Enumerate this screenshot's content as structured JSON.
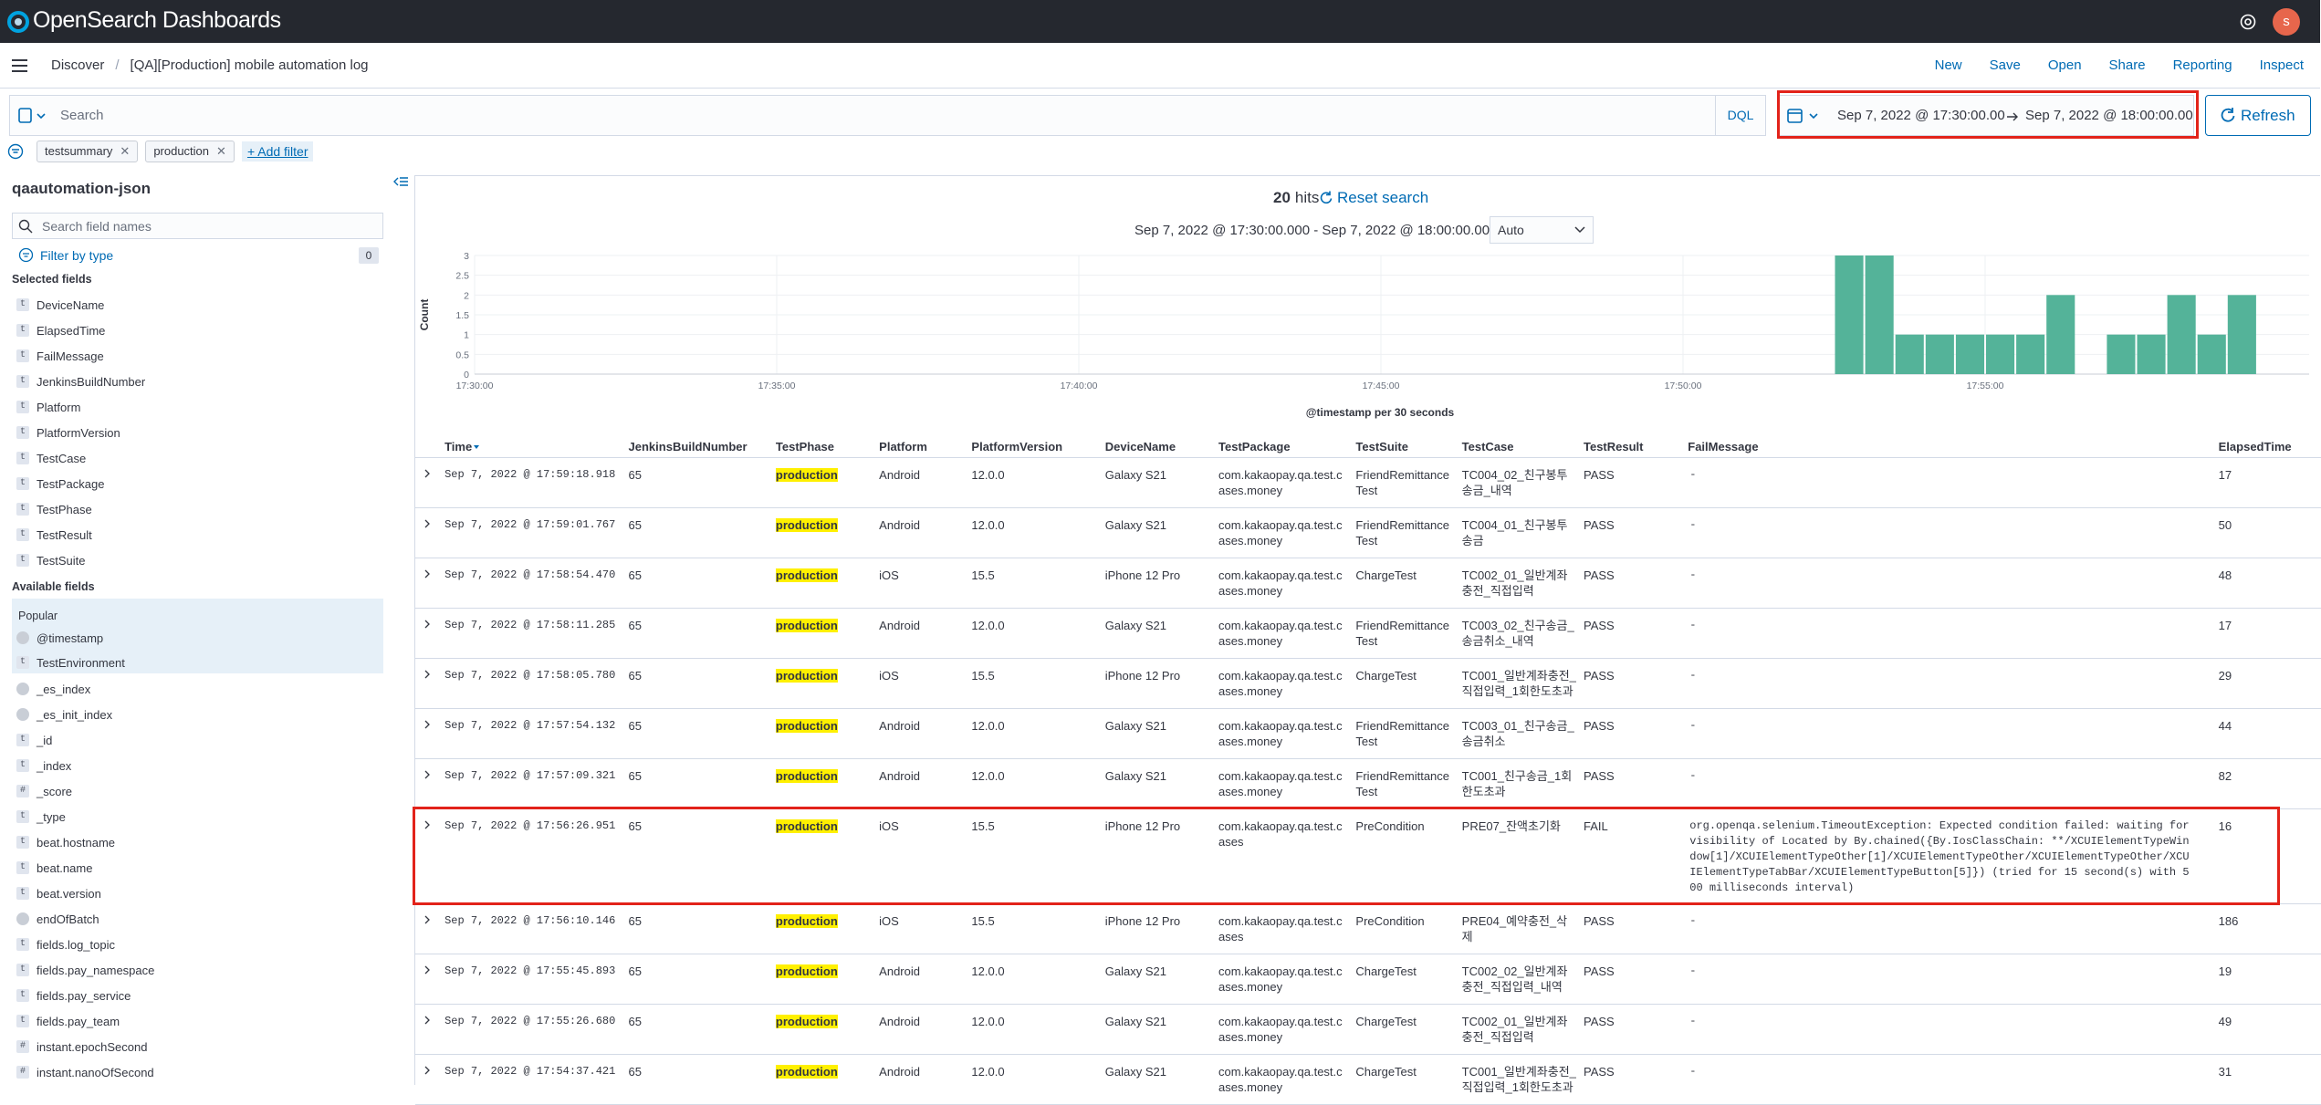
{
  "header": {
    "logo": "OpenSearch Dashboards",
    "avatar": "s"
  },
  "nav": {
    "breadcrumbs": [
      "Discover",
      "[QA][Production] mobile automation log"
    ],
    "actions": [
      "New",
      "Save",
      "Open",
      "Share",
      "Reporting",
      "Inspect"
    ]
  },
  "query": {
    "placeholder": "Search",
    "language": "DQL",
    "time_start": "Sep 7, 2022 @ 17:30:00.00",
    "time_end": "Sep 7, 2022 @ 18:00:00.00",
    "refresh": "Refresh"
  },
  "filters": {
    "pills": [
      "testsummary",
      "production"
    ],
    "add": "+ Add filter"
  },
  "sidebar": {
    "index": "qaautomation-json",
    "search_placeholder": "Search field names",
    "filter_by_type": "Filter by type",
    "filter_count": 0,
    "selected_title": "Selected fields",
    "selected": [
      {
        "icon": "t",
        "name": "DeviceName"
      },
      {
        "icon": "t",
        "name": "ElapsedTime"
      },
      {
        "icon": "t",
        "name": "FailMessage"
      },
      {
        "icon": "t",
        "name": "JenkinsBuildNumber"
      },
      {
        "icon": "t",
        "name": "Platform"
      },
      {
        "icon": "t",
        "name": "PlatformVersion"
      },
      {
        "icon": "t",
        "name": "TestCase"
      },
      {
        "icon": "t",
        "name": "TestPackage"
      },
      {
        "icon": "t",
        "name": "TestPhase"
      },
      {
        "icon": "t",
        "name": "TestResult"
      },
      {
        "icon": "t",
        "name": "TestSuite"
      }
    ],
    "available_title": "Available fields",
    "popular_title": "Popular",
    "popular": [
      {
        "name": "@timestamp"
      },
      {
        "icon": "t",
        "name": "TestEnvironment"
      }
    ],
    "available": [
      {
        "name": "_es_index"
      },
      {
        "name": "_es_init_index"
      },
      {
        "icon": "t",
        "name": "_id"
      },
      {
        "icon": "t",
        "name": "_index"
      },
      {
        "icon": "#",
        "name": "_score"
      },
      {
        "icon": "t",
        "name": "_type"
      },
      {
        "icon": "t",
        "name": "beat.hostname"
      },
      {
        "icon": "t",
        "name": "beat.name"
      },
      {
        "icon": "t",
        "name": "beat.version"
      },
      {
        "name": "endOfBatch"
      },
      {
        "icon": "t",
        "name": "fields.log_topic"
      },
      {
        "icon": "t",
        "name": "fields.pay_namespace"
      },
      {
        "icon": "t",
        "name": "fields.pay_service"
      },
      {
        "icon": "t",
        "name": "fields.pay_team"
      },
      {
        "icon": "#",
        "name": "instant.epochSecond"
      },
      {
        "icon": "#",
        "name": "instant.nanoOfSecond"
      }
    ]
  },
  "results": {
    "hits": 20,
    "hits_label": "hits",
    "reset": "Reset search",
    "range": "Sep 7, 2022 @ 17:30:00.000 - Sep 7, 2022 @ 18:00:00.000",
    "interval": "Auto"
  },
  "histogram": {
    "y_label": "Count",
    "x_label": "@timestamp per 30 seconds",
    "color": "#54b399",
    "ylim": [
      0,
      3
    ],
    "yticks": [
      0,
      0.5,
      1,
      1.5,
      2,
      2.5,
      3
    ],
    "xticks": [
      "17:30:00",
      "17:35:00",
      "17:40:00",
      "17:45:00",
      "17:50:00",
      "17:55:00"
    ],
    "values": [
      0,
      0,
      0,
      0,
      0,
      0,
      0,
      0,
      0,
      0,
      0,
      0,
      0,
      0,
      0,
      0,
      0,
      0,
      0,
      0,
      0,
      0,
      0,
      0,
      0,
      0,
      0,
      0,
      0,
      0,
      0,
      0,
      0,
      0,
      0,
      0,
      0,
      0,
      0,
      0,
      0,
      0,
      0,
      0,
      0,
      3,
      3,
      1,
      1,
      1,
      1,
      1,
      2,
      0,
      1,
      1,
      2,
      1,
      2,
      0
    ]
  },
  "table": {
    "columns": [
      "Time",
      "JenkinsBuildNumber",
      "TestPhase",
      "Platform",
      "PlatformVersion",
      "DeviceName",
      "TestPackage",
      "TestSuite",
      "TestCase",
      "TestResult",
      "FailMessage",
      "ElapsedTime"
    ],
    "rows": [
      [
        "Sep 7, 2022 @ 17:59:18.918",
        "65",
        "production",
        "Android",
        "12.0.0",
        "Galaxy S21",
        "com.kakaopay.qa.test.cases.money",
        "FriendRemittanceTest",
        "TC004_02_친구봉투송금_내역",
        "PASS",
        "-",
        "17"
      ],
      [
        "Sep 7, 2022 @ 17:59:01.767",
        "65",
        "production",
        "Android",
        "12.0.0",
        "Galaxy S21",
        "com.kakaopay.qa.test.cases.money",
        "FriendRemittanceTest",
        "TC004_01_친구봉투송금",
        "PASS",
        "-",
        "50"
      ],
      [
        "Sep 7, 2022 @ 17:58:54.470",
        "65",
        "production",
        "iOS",
        "15.5",
        "iPhone 12 Pro",
        "com.kakaopay.qa.test.cases.money",
        "ChargeTest",
        "TC002_01_일반계좌충전_직접입력",
        "PASS",
        "-",
        "48"
      ],
      [
        "Sep 7, 2022 @ 17:58:11.285",
        "65",
        "production",
        "Android",
        "12.0.0",
        "Galaxy S21",
        "com.kakaopay.qa.test.cases.money",
        "FriendRemittanceTest",
        "TC003_02_친구송금_송금취소_내역",
        "PASS",
        "-",
        "17"
      ],
      [
        "Sep 7, 2022 @ 17:58:05.780",
        "65",
        "production",
        "iOS",
        "15.5",
        "iPhone 12 Pro",
        "com.kakaopay.qa.test.cases.money",
        "ChargeTest",
        "TC001_일반계좌충전_직접입력_1회한도초과",
        "PASS",
        "-",
        "29"
      ],
      [
        "Sep 7, 2022 @ 17:57:54.132",
        "65",
        "production",
        "Android",
        "12.0.0",
        "Galaxy S21",
        "com.kakaopay.qa.test.cases.money",
        "FriendRemittanceTest",
        "TC003_01_친구송금_송금취소",
        "PASS",
        "-",
        "44"
      ],
      [
        "Sep 7, 2022 @ 17:57:09.321",
        "65",
        "production",
        "Android",
        "12.0.0",
        "Galaxy S21",
        "com.kakaopay.qa.test.cases.money",
        "FriendRemittanceTest",
        "TC001_친구송금_1회한도초과",
        "PASS",
        "-",
        "82"
      ],
      [
        "Sep 7, 2022 @ 17:56:26.951",
        "65",
        "production",
        "iOS",
        "15.5",
        "iPhone 12 Pro",
        "com.kakaopay.qa.test.cases",
        "PreCondition",
        "PRE07_잔액초기화",
        "FAIL",
        "org.openqa.selenium.TimeoutException: Expected condition failed: waiting for visibility of Located by By.chained({By.IosClassChain: **/XCUIElementTypeWindow[1]/XCUIElementTypeOther[1]/XCUIElementTypeOther/XCUIElementTypeOther/XCUIElementTypeTabBar/XCUIElementTypeButton[5]}) (tried for 15 second(s) with 500 milliseconds interval)",
        "16"
      ],
      [
        "Sep 7, 2022 @ 17:56:10.146",
        "65",
        "production",
        "iOS",
        "15.5",
        "iPhone 12 Pro",
        "com.kakaopay.qa.test.cases",
        "PreCondition",
        "PRE04_예약충전_삭제",
        "PASS",
        "-",
        "186"
      ],
      [
        "Sep 7, 2022 @ 17:55:45.893",
        "65",
        "production",
        "Android",
        "12.0.0",
        "Galaxy S21",
        "com.kakaopay.qa.test.cases.money",
        "ChargeTest",
        "TC002_02_일반계좌충전_직접입력_내역",
        "PASS",
        "-",
        "19"
      ],
      [
        "Sep 7, 2022 @ 17:55:26.680",
        "65",
        "production",
        "Android",
        "12.0.0",
        "Galaxy S21",
        "com.kakaopay.qa.test.cases.money",
        "ChargeTest",
        "TC002_01_일반계좌충전_직접입력",
        "PASS",
        "-",
        "49"
      ],
      [
        "Sep 7, 2022 @ 17:54:37.421",
        "65",
        "production",
        "Android",
        "12.0.0",
        "Galaxy S21",
        "com.kakaopay.qa.test.cases.money",
        "ChargeTest",
        "TC001_일반계좌충전_직접입력_1회한도초과",
        "PASS",
        "-",
        "31"
      ]
    ]
  }
}
